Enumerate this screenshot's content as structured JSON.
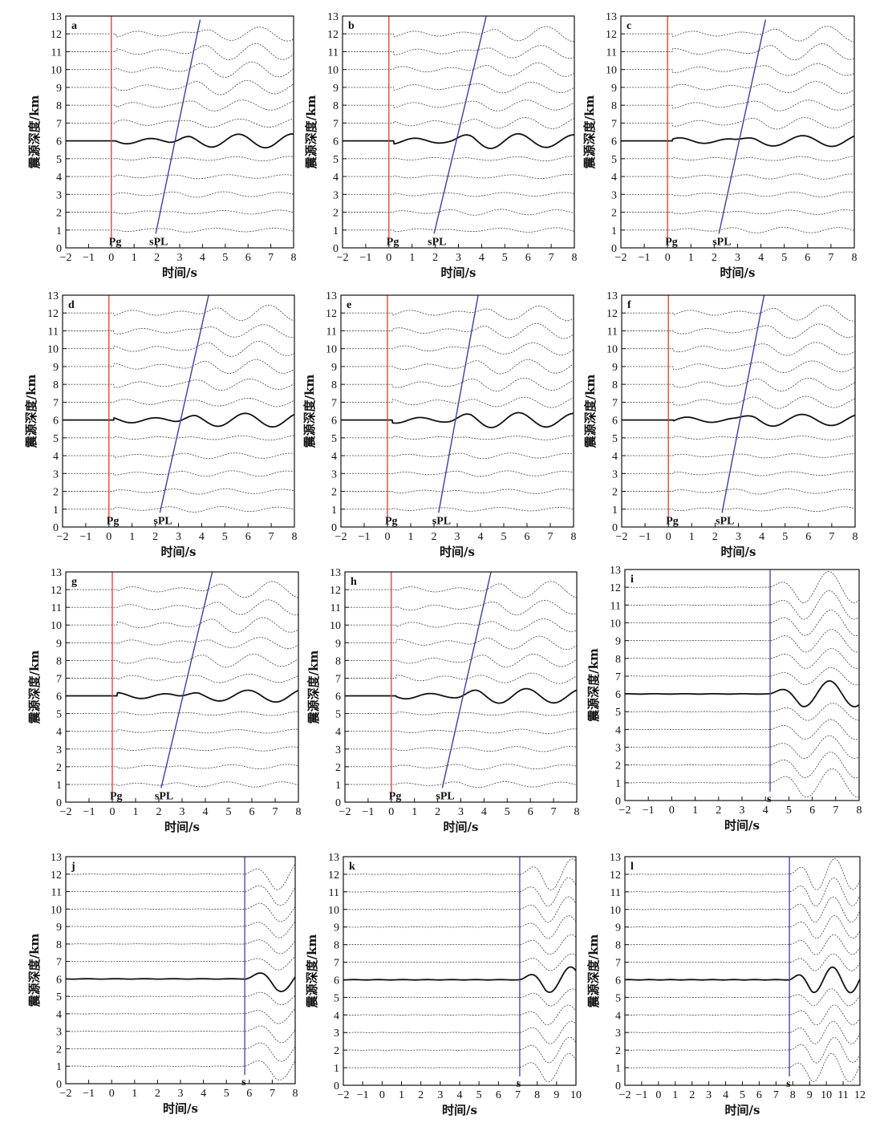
{
  "colors": {
    "pg_line": "#e8392b",
    "phase_line": "#3b3fa6",
    "trace": "#555555",
    "main_trace": "#111111",
    "frame": "#111111"
  },
  "chart_data": [
    {
      "type": "line",
      "panel": "a",
      "xlabel": "时间/s",
      "ylabel": "震源深度/km",
      "xlim": [
        -2,
        8
      ],
      "ylim": [
        0,
        13
      ],
      "xticks": [
        -2,
        -1,
        0,
        1,
        2,
        3,
        4,
        5,
        6,
        7,
        8
      ],
      "yticks": [
        0,
        1,
        2,
        3,
        4,
        5,
        6,
        7,
        8,
        9,
        10,
        11,
        12,
        13
      ],
      "pg_label": "Pg",
      "pg_time": 0,
      "phase_label": "sPL",
      "phase_line": {
        "x": [
          1.95,
          3.9
        ],
        "y": [
          0.8,
          12.8
        ]
      },
      "main_trace_depth": 6,
      "depths": [
        1,
        2,
        3,
        4,
        5,
        6,
        7,
        8,
        9,
        10,
        11,
        12
      ]
    },
    {
      "type": "line",
      "panel": "b",
      "xlabel": "时间/s",
      "ylabel": "震源深度/km",
      "xlim": [
        -2,
        8
      ],
      "ylim": [
        0,
        13
      ],
      "xticks": [
        -2,
        -1,
        0,
        1,
        2,
        3,
        4,
        5,
        6,
        7,
        8
      ],
      "yticks": [
        0,
        1,
        2,
        3,
        4,
        5,
        6,
        7,
        8,
        9,
        10,
        11,
        12,
        13
      ],
      "pg_label": "Pg",
      "pg_time": 0,
      "phase_label": "sPL",
      "phase_line": {
        "x": [
          1.95,
          4.2
        ],
        "y": [
          0.8,
          13
        ]
      },
      "main_trace_depth": 6,
      "depths": [
        1,
        2,
        3,
        4,
        5,
        6,
        7,
        8,
        9,
        10,
        11,
        12
      ]
    },
    {
      "type": "line",
      "panel": "c",
      "xlabel": "时间/s",
      "ylabel": "震源深度/km",
      "xlim": [
        -2,
        8
      ],
      "ylim": [
        0,
        13
      ],
      "xticks": [
        -2,
        -1,
        0,
        1,
        2,
        3,
        4,
        5,
        6,
        7,
        8
      ],
      "yticks": [
        0,
        1,
        2,
        3,
        4,
        5,
        6,
        7,
        8,
        9,
        10,
        11,
        12,
        13
      ],
      "pg_label": "Pg",
      "pg_time": 0,
      "phase_label": "sPL",
      "phase_line": {
        "x": [
          2.2,
          4.2
        ],
        "y": [
          0.8,
          12.8
        ]
      },
      "main_trace_depth": 6,
      "depths": [
        1,
        2,
        3,
        4,
        5,
        6,
        7,
        8,
        9,
        10,
        11,
        12
      ]
    },
    {
      "type": "line",
      "panel": "d",
      "xlabel": "时间/s",
      "ylabel": "震源深度/km",
      "xlim": [
        -2,
        8
      ],
      "ylim": [
        0,
        13
      ],
      "xticks": [
        -2,
        -1,
        0,
        1,
        2,
        3,
        4,
        5,
        6,
        7,
        8
      ],
      "yticks": [
        0,
        1,
        2,
        3,
        4,
        5,
        6,
        7,
        8,
        9,
        10,
        11,
        12,
        13
      ],
      "pg_label": "Pg",
      "pg_time": 0,
      "phase_label": "sPL",
      "phase_line": {
        "x": [
          2.2,
          4.3
        ],
        "y": [
          0.8,
          13
        ]
      },
      "main_trace_depth": 6,
      "depths": [
        1,
        2,
        3,
        4,
        5,
        6,
        7,
        8,
        9,
        10,
        11,
        12
      ]
    },
    {
      "type": "line",
      "panel": "e",
      "xlabel": "时间/s",
      "ylabel": "震源深度/km",
      "xlim": [
        -2,
        8
      ],
      "ylim": [
        0,
        13
      ],
      "xticks": [
        -2,
        -1,
        0,
        1,
        2,
        3,
        4,
        5,
        6,
        7,
        8
      ],
      "yticks": [
        0,
        1,
        2,
        3,
        4,
        5,
        6,
        7,
        8,
        9,
        10,
        11,
        12,
        13
      ],
      "pg_label": "Pg",
      "pg_time": 0,
      "phase_label": "sPL",
      "phase_line": {
        "x": [
          2.2,
          3.9
        ],
        "y": [
          0.8,
          13
        ]
      },
      "main_trace_depth": 6,
      "depths": [
        1,
        2,
        3,
        4,
        5,
        6,
        7,
        8,
        9,
        10,
        11,
        12
      ]
    },
    {
      "type": "line",
      "panel": "f",
      "xlabel": "时间/s",
      "ylabel": "震源深度/km",
      "xlim": [
        -2,
        8
      ],
      "ylim": [
        0,
        13
      ],
      "xticks": [
        -2,
        -1,
        0,
        1,
        2,
        3,
        4,
        5,
        6,
        7,
        8
      ],
      "yticks": [
        0,
        1,
        2,
        3,
        4,
        5,
        6,
        7,
        8,
        9,
        10,
        11,
        12,
        13
      ],
      "pg_label": "Pg",
      "pg_time": 0,
      "phase_label": "sPL",
      "phase_line": {
        "x": [
          2.3,
          4.1
        ],
        "y": [
          0.8,
          13
        ]
      },
      "main_trace_depth": 6,
      "depths": [
        1,
        2,
        3,
        4,
        5,
        6,
        7,
        8,
        9,
        10,
        11,
        12
      ]
    },
    {
      "type": "line",
      "panel": "g",
      "xlabel": "时间/s",
      "ylabel": "震源深度/km",
      "xlim": [
        -2,
        8
      ],
      "ylim": [
        0,
        13
      ],
      "xticks": [
        -2,
        -1,
        0,
        1,
        2,
        3,
        4,
        5,
        6,
        7,
        8
      ],
      "yticks": [
        0,
        1,
        2,
        3,
        4,
        5,
        6,
        7,
        8,
        9,
        10,
        11,
        12,
        13
      ],
      "pg_label": "Pg",
      "pg_time": 0,
      "phase_label": "sPL",
      "phase_line": {
        "x": [
          2.1,
          4.3
        ],
        "y": [
          0.8,
          13
        ]
      },
      "main_trace_depth": 6,
      "depths": [
        1,
        2,
        3,
        4,
        5,
        6,
        7,
        8,
        9,
        10,
        11,
        12
      ]
    },
    {
      "type": "line",
      "panel": "h",
      "xlabel": "时间/s",
      "ylabel": "震源深度/km",
      "xlim": [
        -2,
        8
      ],
      "ylim": [
        0,
        13
      ],
      "xticks": [
        -2,
        -1,
        0,
        1,
        2,
        3,
        4,
        5,
        6,
        7,
        8
      ],
      "yticks": [
        0,
        1,
        2,
        3,
        4,
        5,
        6,
        7,
        8,
        9,
        10,
        11,
        12,
        13
      ],
      "pg_label": "Pg",
      "pg_time": 0,
      "phase_label": "sPL",
      "phase_line": {
        "x": [
          2.2,
          4.3
        ],
        "y": [
          0.8,
          13
        ]
      },
      "main_trace_depth": 6,
      "depths": [
        1,
        2,
        3,
        4,
        5,
        6,
        7,
        8,
        9,
        10,
        11,
        12
      ]
    },
    {
      "type": "line",
      "panel": "i",
      "xlabel": "时间/s",
      "ylabel": "震源深度/km",
      "xlim": [
        -2,
        8
      ],
      "ylim": [
        0,
        13
      ],
      "xticks": [
        -2,
        -1,
        0,
        1,
        2,
        3,
        4,
        5,
        6,
        7,
        8
      ],
      "yticks": [
        0,
        1,
        2,
        3,
        4,
        5,
        6,
        7,
        8,
        9,
        10,
        11,
        12,
        13
      ],
      "phase_label": "s",
      "s_time": 4.2,
      "main_trace_depth": 6,
      "depths": [
        1,
        2,
        3,
        4,
        5,
        6,
        7,
        8,
        9,
        10,
        11,
        12
      ]
    },
    {
      "type": "line",
      "panel": "j",
      "xlabel": "时间/s",
      "ylabel": "震源深度/km",
      "xlim": [
        -2,
        8
      ],
      "ylim": [
        0,
        13
      ],
      "xticks": [
        -2,
        -1,
        0,
        1,
        2,
        3,
        4,
        5,
        6,
        7,
        8
      ],
      "yticks": [
        0,
        1,
        2,
        3,
        4,
        5,
        6,
        7,
        8,
        9,
        10,
        11,
        12,
        13
      ],
      "phase_label": "s",
      "s_time": 5.8,
      "main_trace_depth": 6,
      "depths": [
        1,
        2,
        3,
        4,
        5,
        6,
        7,
        8,
        9,
        10,
        11,
        12
      ]
    },
    {
      "type": "line",
      "panel": "k",
      "xlabel": "时间/s",
      "ylabel": "震源深度/km",
      "xlim": [
        -2,
        10
      ],
      "ylim": [
        0,
        13
      ],
      "xticks": [
        -2,
        -1,
        0,
        1,
        2,
        3,
        4,
        5,
        6,
        7,
        8,
        9,
        10
      ],
      "yticks": [
        0,
        1,
        2,
        3,
        4,
        5,
        6,
        7,
        8,
        9,
        10,
        11,
        12,
        13
      ],
      "phase_label": "s",
      "s_time": 7.1,
      "main_trace_depth": 6,
      "depths": [
        1,
        2,
        3,
        4,
        5,
        6,
        7,
        8,
        9,
        10,
        11,
        12
      ]
    },
    {
      "type": "line",
      "panel": "l",
      "xlabel": "时间/s",
      "ylabel": "震源深度/km",
      "xlim": [
        -2,
        12
      ],
      "ylim": [
        0,
        13
      ],
      "xticks": [
        -2,
        -1,
        0,
        1,
        2,
        3,
        4,
        5,
        6,
        7,
        8,
        9,
        10,
        11,
        12
      ],
      "yticks": [
        0,
        1,
        2,
        3,
        4,
        5,
        6,
        7,
        8,
        9,
        10,
        11,
        12,
        13
      ],
      "phase_label": "s",
      "s_time": 7.8,
      "main_trace_depth": 6,
      "depths": [
        1,
        2,
        3,
        4,
        5,
        6,
        7,
        8,
        9,
        10,
        11,
        12
      ]
    }
  ]
}
